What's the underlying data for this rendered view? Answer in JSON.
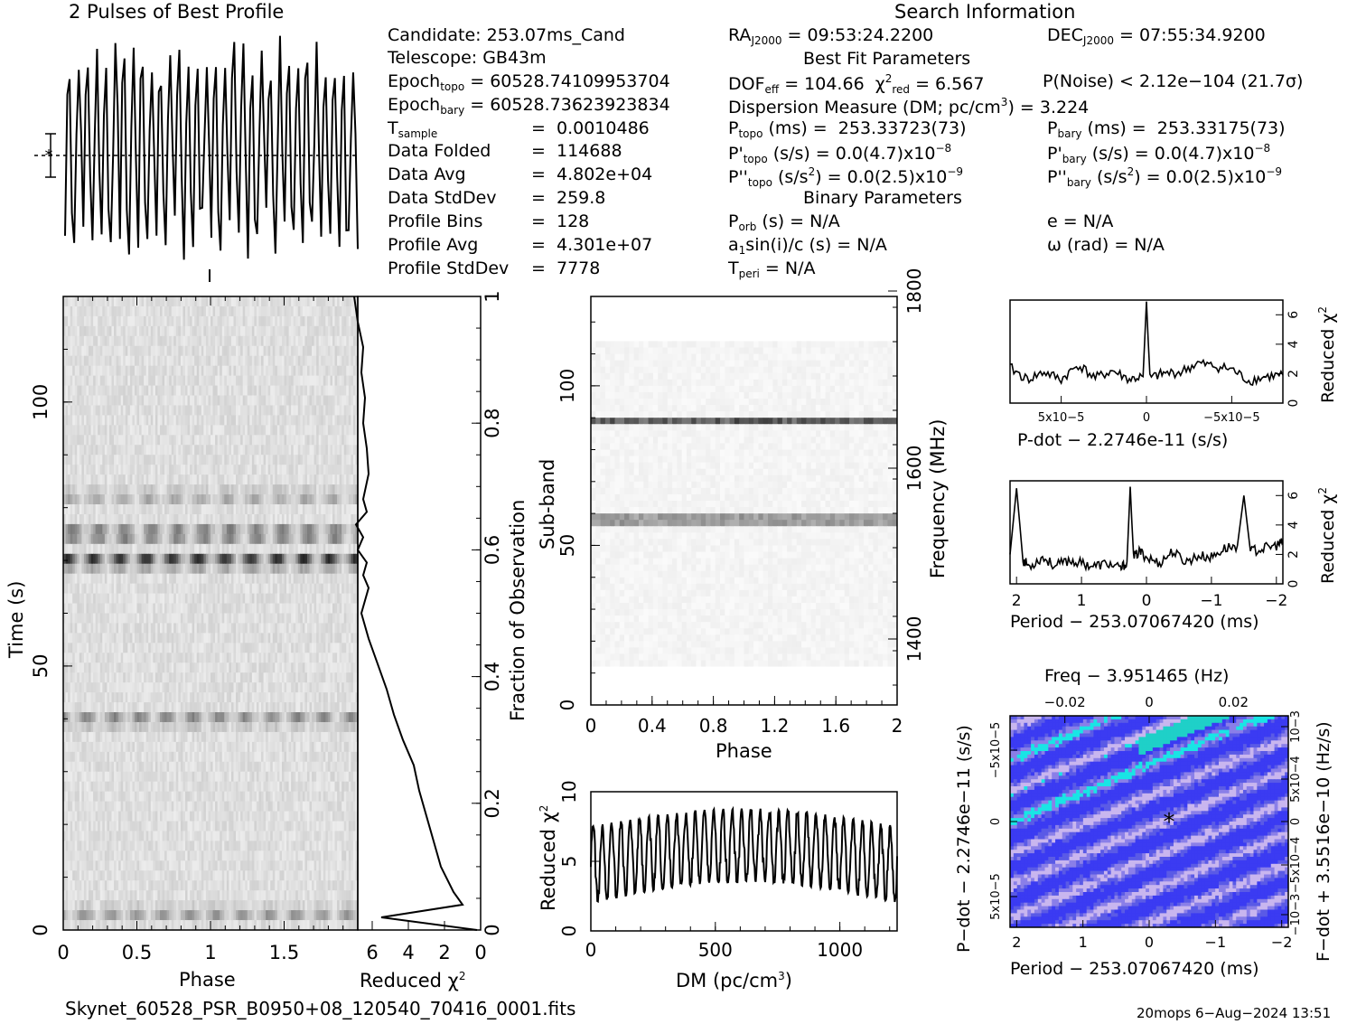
{
  "header": {
    "profile_title": "2 Pulses of Best Profile",
    "search_title": "Search Information",
    "best_fit_title": "Best Fit Parameters",
    "binary_title": "Binary Parameters"
  },
  "info_left": {
    "candidate": "Candidate:  253.07ms_Cand",
    "telescope": "Telescope:  GB43m",
    "epoch_topo": "60528.74109953704",
    "epoch_bary": "60528.73623923834",
    "t_sample": "0.0010486",
    "data_folded": "114688",
    "data_avg": "4.802e+04",
    "data_stddev": "259.8",
    "profile_bins": "128",
    "profile_avg": "4.301e+07",
    "profile_stddev": "7778"
  },
  "info_right": {
    "ra": "09:53:24.2200",
    "dec": "07:55:34.9200",
    "dof_eff": "104.66",
    "chi2_red": "6.567",
    "p_noise": "P(Noise) < 2.12e−104   (21.7σ)",
    "dm": "3.224",
    "p_topo": "253.33723(73)",
    "p_bary": "253.33175(73)",
    "pdot_topo": "0.0(4.7)x10",
    "pdot_bary": "0.0(4.7)x10",
    "pdotdot_topo": "0.0(2.5)x10",
    "pdotdot_bary": "0.0(2.5)x10",
    "p_orb": "N/A",
    "e": "N/A",
    "a1sini": "N/A",
    "omega": "N/A",
    "t_peri": "N/A"
  },
  "footer": {
    "filename": "Skynet_60528_PSR_B0950+08_120540_70416_0001.fits",
    "stamp": "20mops   6−Aug−2024 13:51"
  },
  "chart_data": [
    {
      "id": "profile",
      "type": "line",
      "title": "2 Pulses of Best Profile",
      "x": [
        0,
        0.0156,
        0.0312,
        0.0469,
        0.0625,
        0.0781,
        0.0938,
        0.1094,
        0.125,
        0.1406,
        0.1562,
        0.1719,
        0.1875,
        0.2031,
        0.2188,
        0.2344,
        0.25,
        0.2656,
        0.2812,
        0.2969,
        0.3125,
        0.3281,
        0.3438,
        0.3594,
        0.375,
        0.3906,
        0.4062,
        0.4219,
        0.4375,
        0.4531,
        0.4688,
        0.4844,
        0.5,
        0.5156,
        0.5312,
        0.5469,
        0.5625,
        0.5781,
        0.5938,
        0.6094,
        0.625,
        0.6406,
        0.6562,
        0.6719,
        0.6875,
        0.7031,
        0.7188,
        0.7344,
        0.75,
        0.7656,
        0.7812,
        0.7969,
        0.8125,
        0.8281,
        0.8438,
        0.8594,
        0.875,
        0.8906,
        0.9062,
        0.9219,
        0.9375,
        0.9531,
        0.9688,
        0.9844,
        1.0
      ],
      "values": [
        -0.75,
        0.55,
        0.85,
        -0.45,
        -0.8,
        0.2,
        0.95,
        0.1,
        -0.7,
        0.6,
        0.9,
        -0.3,
        -0.85,
        0.35,
        1.0,
        -0.05,
        -0.8,
        0.5,
        0.8,
        -0.5,
        -0.7,
        0.15,
        0.9,
        0.3,
        -0.65,
        0.7,
        0.75,
        -0.4,
        -0.9,
        0.25,
        0.95,
        0.05,
        -0.75,
        0.55,
        0.85,
        -0.35,
        -0.8,
        0.3,
        0.9,
        -0.1,
        -0.7,
        0.65,
        0.8,
        -0.5,
        -0.75,
        0.2,
        0.95,
        0.2,
        -0.6,
        0.6,
        0.9,
        -0.25,
        -0.85,
        0.4,
        0.85,
        -0.2,
        -0.7,
        0.5,
        0.75,
        -0.55,
        -0.65,
        0.25,
        0.85,
        0.1,
        -0.75
      ],
      "repeat_pulses": 2
    },
    {
      "id": "time-phase",
      "type": "heatmap",
      "xlabel": "Phase",
      "ylabel": "Time (s)",
      "xlim": [
        0,
        2
      ],
      "ylim": [
        0,
        120
      ],
      "xticks": [
        "0",
        "0.5",
        "1",
        "1.5"
      ],
      "yticks": [
        "0",
        "50",
        "100"
      ],
      "right_axis_label": "Fraction of Observation",
      "right_ticks": [
        "0.2",
        "0.4",
        "0.6",
        "0.8",
        "1"
      ],
      "dark_bands_s": [
        {
          "t": 70,
          "strength": 0.9
        },
        {
          "t": 75,
          "strength": 0.7
        },
        {
          "t": 40,
          "strength": 0.45
        },
        {
          "t": 82,
          "strength": 0.3
        },
        {
          "t": 3,
          "strength": 0.35
        }
      ]
    },
    {
      "id": "time-chi2",
      "type": "line",
      "xlabel": "Reduced χ2",
      "xticks": [
        "6",
        "4",
        "2",
        "0"
      ],
      "xlim": [
        6.8,
        0
      ],
      "fraction": [
        0,
        0.02,
        0.04,
        0.06,
        0.1,
        0.14,
        0.18,
        0.22,
        0.26,
        0.3,
        0.34,
        0.38,
        0.42,
        0.46,
        0.5,
        0.54,
        0.56,
        0.58,
        0.6,
        0.62,
        0.64,
        0.66,
        0.68,
        0.72,
        0.76,
        0.8,
        0.84,
        0.88,
        0.92,
        0.96,
        1.0
      ],
      "chi2": [
        0.2,
        5.5,
        1.0,
        1.5,
        2.2,
        2.6,
        3.0,
        3.4,
        3.7,
        4.3,
        4.8,
        5.2,
        5.7,
        6.2,
        6.6,
        6.2,
        6.5,
        6.3,
        6.8,
        6.5,
        6.9,
        6.3,
        6.5,
        6.2,
        6.3,
        6.5,
        6.4,
        6.6,
        6.5,
        6.8,
        7.0
      ]
    },
    {
      "id": "subband-phase",
      "type": "heatmap",
      "xlabel": "Phase",
      "ylabel": "Sub-band",
      "right_label": "Frequency (MHz)",
      "xlim": [
        0,
        2
      ],
      "ylim": [
        0,
        128
      ],
      "xticks": [
        "0",
        "0.4",
        "0.8",
        "1.2",
        "1.6",
        "2"
      ],
      "yticks": [
        "0",
        "50",
        "100"
      ],
      "freq_ticks": [
        "1400",
        "1600",
        "1800"
      ],
      "dark_rows": [
        {
          "band": 89,
          "strength": 0.8
        },
        {
          "band": 58,
          "strength": 0.45
        }
      ]
    },
    {
      "id": "dm-chi2",
      "type": "line",
      "xlabel": "DM (pc/cm3)",
      "ylabel": "Reduced χ2",
      "xlim": [
        0,
        1230
      ],
      "ylim": [
        0,
        10
      ],
      "xticks": [
        "0",
        "500",
        "1000"
      ],
      "yticks": [
        "0",
        "5",
        "10"
      ],
      "oscillation_cycles": 33,
      "envelope_low": [
        2.0,
        3.5
      ],
      "envelope_high": [
        7.5,
        8.8
      ]
    },
    {
      "id": "pdot-chi2",
      "type": "line",
      "xlabel": "P-dot − 2.2746e-11 (s/s)",
      "ylabel": "Reduced χ2",
      "xlim": [
        8e-05,
        -8e-05
      ],
      "ylim": [
        0,
        7
      ],
      "xticks": [
        "5x10−5",
        "0",
        "−5x10−5"
      ],
      "yticks": [
        "0",
        "2",
        "4",
        "6"
      ],
      "x": [
        8e-05,
        7e-05,
        6e-05,
        5e-05,
        4e-05,
        3e-05,
        2e-05,
        1e-05,
        2e-06,
        0,
        -2e-06,
        -1e-05,
        -2e-05,
        -3e-05,
        -4e-05,
        -5e-05,
        -6e-05,
        -7e-05,
        -8e-05
      ],
      "values": [
        2.4,
        1.6,
        2.1,
        1.6,
        2.6,
        1.7,
        2.2,
        1.6,
        1.8,
        6.9,
        1.7,
        2.0,
        2.1,
        2.7,
        2.5,
        2.3,
        1.5,
        1.8,
        1.9
      ]
    },
    {
      "id": "period-chi2",
      "type": "line",
      "xlabel": "Period − 253.07067420 (ms)",
      "ylabel": "Reduced χ2",
      "xlim": [
        2.1,
        -2.1
      ],
      "ylim": [
        0,
        7
      ],
      "xticks": [
        "2",
        "1",
        "0",
        "−1",
        "−2"
      ],
      "yticks": [
        "0",
        "2",
        "4",
        "6"
      ],
      "x": [
        2.1,
        2.0,
        1.9,
        1.8,
        1.6,
        1.4,
        1.2,
        1.0,
        0.8,
        0.6,
        0.4,
        0.3,
        0.25,
        0.2,
        0.1,
        0,
        -0.2,
        -0.4,
        -0.6,
        -0.8,
        -1.0,
        -1.2,
        -1.4,
        -1.5,
        -1.6,
        -1.8,
        -2.0,
        -2.1
      ],
      "values": [
        2.0,
        6.5,
        1.6,
        1.2,
        1.8,
        1.2,
        1.6,
        1.4,
        1.2,
        1.4,
        1.0,
        1.5,
        6.6,
        1.8,
        2.2,
        1.8,
        1.4,
        2.2,
        1.5,
        1.9,
        1.8,
        2.4,
        2.6,
        6.0,
        2.2,
        2.4,
        2.6,
        2.8
      ]
    },
    {
      "id": "pdot-period-map",
      "type": "heatmap",
      "title": "Freq − 3.951465 (Hz)",
      "xlabel": "Period − 253.07067420 (ms)",
      "ylabel": "P−dot − 2.2746e−11 (s/s)",
      "right_label": "F−dot + 3.5516e−10 (Hz/s)",
      "xlim": [
        2.1,
        -2.1
      ],
      "xticks": [
        "2",
        "1",
        "0",
        "−1",
        "−2"
      ],
      "top_ticks": [
        "−0.02",
        "0",
        "0.02"
      ],
      "left_ticks": [
        "−5x10−5",
        "0",
        "5x10−5"
      ],
      "right_ticks": [
        "10−3",
        "5x10−4",
        "0",
        "−5x10−4",
        "−10−3"
      ],
      "best_fit": {
        "period": -0.3,
        "pdot": 0
      },
      "colors": [
        "#3b3bf2",
        "#5a5ae6",
        "#8a7fe8",
        "#c9b6ef",
        "#19e5e5",
        "#1fd0c8"
      ]
    }
  ]
}
